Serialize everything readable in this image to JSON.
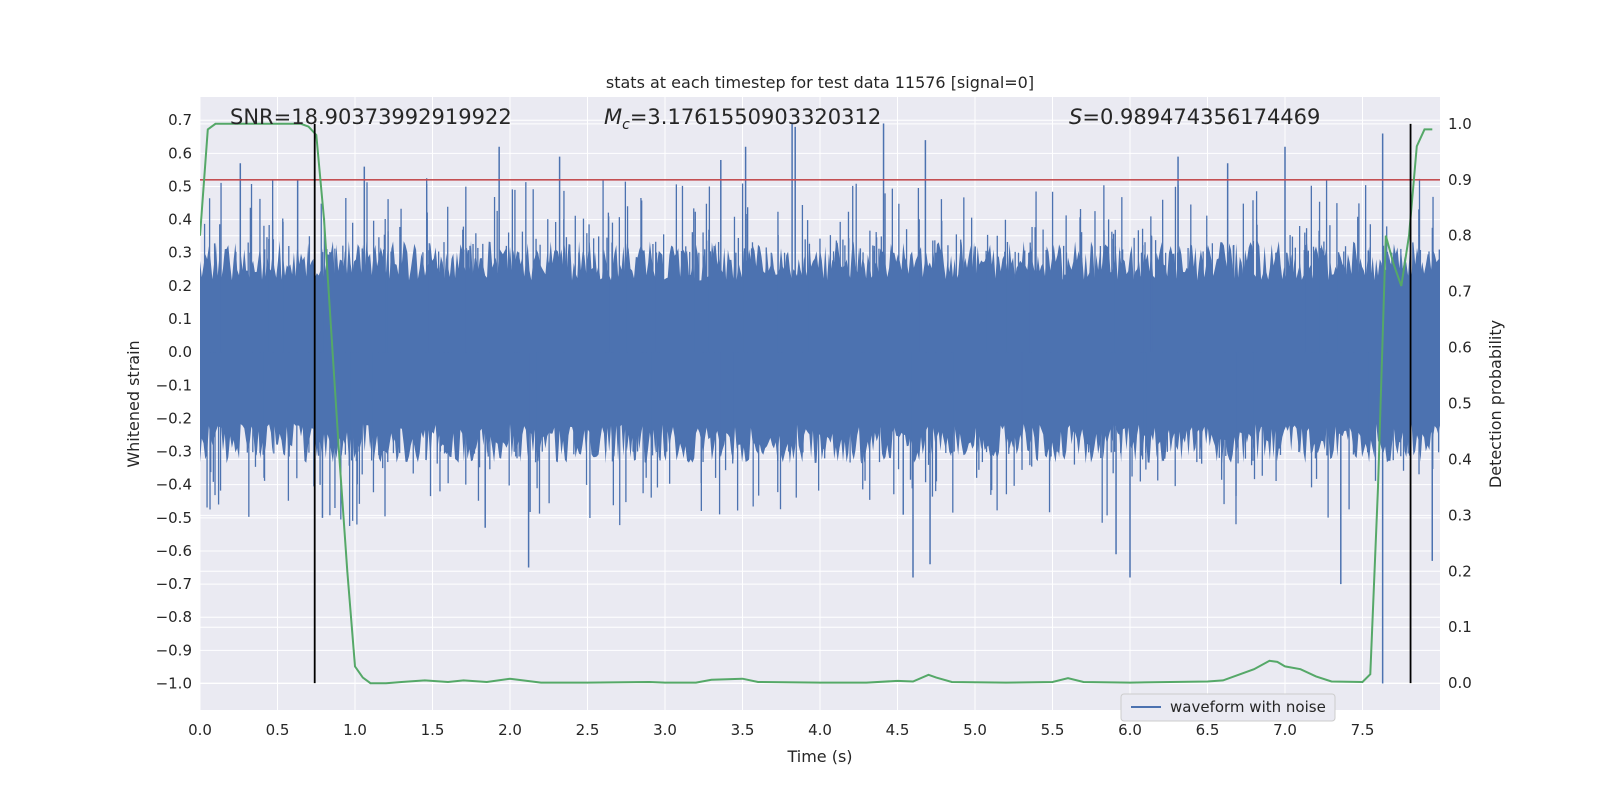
{
  "chart_data": {
    "type": "line",
    "title": "stats at each timestep for test data 11576 [signal=0]",
    "xlabel": "Time (s)",
    "ylabel": "Whitened strain",
    "y2label": "Detection probability",
    "xlim": [
      0.0,
      8.0
    ],
    "ylim": [
      -1.08,
      0.77
    ],
    "y2lim": [
      -0.048,
      1.048
    ],
    "xticks": [
      0.0,
      0.5,
      1.0,
      1.5,
      2.0,
      2.5,
      3.0,
      3.5,
      4.0,
      4.5,
      5.0,
      5.5,
      6.0,
      6.5,
      7.0,
      7.5
    ],
    "xtick_labels": [
      "0.0",
      "0.5",
      "1.0",
      "1.5",
      "2.0",
      "2.5",
      "3.0",
      "3.5",
      "4.0",
      "4.5",
      "5.0",
      "5.5",
      "6.0",
      "6.5",
      "7.0",
      "7.5"
    ],
    "yticks": [
      0.7,
      0.6,
      0.5,
      0.4,
      0.3,
      0.2,
      0.1,
      0.0,
      -0.1,
      -0.2,
      -0.3,
      -0.4,
      -0.5,
      -0.6,
      -0.7,
      -0.8,
      -0.9,
      -1.0
    ],
    "ytick_labels": [
      "0.7",
      "0.6",
      "0.5",
      "0.4",
      "0.3",
      "0.2",
      "0.1",
      "0.0",
      "−0.1",
      "−0.2",
      "−0.3",
      "−0.4",
      "−0.5",
      "−0.6",
      "−0.7",
      "−0.8",
      "−0.9",
      "−1.0"
    ],
    "y2ticks": [
      0.0,
      0.1,
      0.2,
      0.3,
      0.4,
      0.5,
      0.6,
      0.7,
      0.8,
      0.9,
      1.0
    ],
    "y2tick_labels": [
      "0.0",
      "0.1",
      "0.2",
      "0.3",
      "0.4",
      "0.5",
      "0.6",
      "0.7",
      "0.8",
      "0.9",
      "1.0"
    ],
    "annotations": {
      "snr": "SNR=18.90373992919922",
      "mc_symbol": "M",
      "mc_subscript": "c",
      "mc_value": "=3.1761550903320312",
      "s_symbol": "S",
      "s_value": "=0.989474356174469"
    },
    "grid": true,
    "legend_position": "lower-right",
    "colors": {
      "waveform": "#4c72b0",
      "probability": "#55a868",
      "threshold": "#c44e52",
      "markers": "#000000",
      "plot_background": "#eaeaf2",
      "grid": "#ffffff"
    },
    "series": [
      {
        "name": "waveform with noise",
        "kind": "noise-waveform",
        "typical_amplitude": 0.3,
        "x_range": [
          0.0,
          8.0
        ],
        "peaks": [
          [
            0.26,
            0.57
          ],
          [
            0.63,
            0.52
          ],
          [
            1.06,
            0.56
          ],
          [
            1.93,
            0.62
          ],
          [
            2.32,
            0.59
          ],
          [
            3.36,
            0.58
          ],
          [
            3.52,
            0.62
          ],
          [
            3.82,
            0.69
          ],
          [
            3.84,
            0.68
          ],
          [
            4.41,
            0.69
          ],
          [
            4.68,
            0.64
          ],
          [
            6.31,
            0.59
          ],
          [
            6.63,
            0.57
          ],
          [
            7.0,
            0.62
          ],
          [
            7.63,
            0.66
          ],
          [
            0.79,
            -0.5
          ],
          [
            1.84,
            -0.53
          ],
          [
            2.12,
            -0.65
          ],
          [
            4.6,
            -0.68
          ],
          [
            4.71,
            -0.64
          ],
          [
            5.91,
            -0.61
          ],
          [
            6.0,
            -0.68
          ],
          [
            7.36,
            -0.7
          ],
          [
            7.63,
            -1.0
          ],
          [
            7.95,
            -0.63
          ]
        ]
      },
      {
        "name": "",
        "kind": "probability-line",
        "axis": "y2",
        "x": [
          0.0,
          0.05,
          0.1,
          0.2,
          0.3,
          0.4,
          0.5,
          0.6,
          0.65,
          0.7,
          0.75,
          0.8,
          0.9,
          0.95,
          1.0,
          1.05,
          1.1,
          1.2,
          1.3,
          1.45,
          1.6,
          1.7,
          1.85,
          2.0,
          2.2,
          2.5,
          2.9,
          3.0,
          3.2,
          3.3,
          3.5,
          3.6,
          4.0,
          4.3,
          4.5,
          4.6,
          4.7,
          4.75,
          4.85,
          5.2,
          5.5,
          5.6,
          5.7,
          6.0,
          6.5,
          6.6,
          6.7,
          6.8,
          6.9,
          6.95,
          7.0,
          7.1,
          7.2,
          7.3,
          7.5,
          7.55,
          7.6,
          7.65,
          7.7,
          7.75,
          7.8,
          7.85,
          7.9,
          7.95
        ],
        "values": [
          0.8,
          0.99,
          1.0,
          1.0,
          1.0,
          1.0,
          1.0,
          1.0,
          1.0,
          0.995,
          0.98,
          0.83,
          0.4,
          0.2,
          0.03,
          0.01,
          0.0,
          0.0,
          0.002,
          0.005,
          0.002,
          0.005,
          0.002,
          0.008,
          0.001,
          0.001,
          0.002,
          0.001,
          0.001,
          0.006,
          0.008,
          0.002,
          0.001,
          0.001,
          0.004,
          0.003,
          0.015,
          0.01,
          0.002,
          0.001,
          0.002,
          0.009,
          0.002,
          0.001,
          0.003,
          0.005,
          0.015,
          0.025,
          0.04,
          0.038,
          0.03,
          0.025,
          0.012,
          0.003,
          0.002,
          0.016,
          0.35,
          0.8,
          0.75,
          0.71,
          0.8,
          0.96,
          0.99,
          0.99
        ]
      }
    ],
    "threshold_y2": 0.9,
    "vertical_markers_x": [
      0.74,
      7.81
    ],
    "vertical_markers_y2_range": [
      0.0,
      1.0
    ],
    "legend": [
      {
        "label": "waveform with noise",
        "color": "#4c72b0"
      }
    ]
  }
}
